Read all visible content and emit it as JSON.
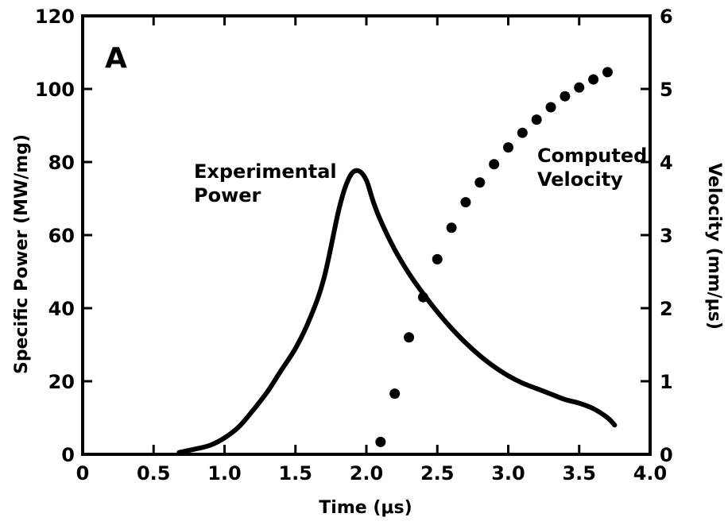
{
  "chart_data": {
    "type": "line",
    "panel_label": "A",
    "xlabel": "Time (μs)",
    "ylabel_left": "Specific Power (MW/mg)",
    "ylabel_right": "Velocity (mm/μs)",
    "xlim": [
      0,
      4.0
    ],
    "ylim_left": [
      0,
      120
    ],
    "ylim_right": [
      0,
      6
    ],
    "x_ticks": [
      0,
      0.5,
      1.0,
      1.5,
      2.0,
      2.5,
      3.0,
      3.5,
      4.0
    ],
    "x_tick_labels": [
      "0",
      "0.5",
      "1.0",
      "1.5",
      "2.0",
      "2.5",
      "3.0",
      "3.5",
      "4.0"
    ],
    "y_left_ticks": [
      0,
      20,
      40,
      60,
      80,
      100,
      120
    ],
    "y_left_tick_labels": [
      "0",
      "20",
      "40",
      "60",
      "80",
      "100",
      "120"
    ],
    "y_right_ticks": [
      0,
      1,
      2,
      3,
      4,
      5,
      6
    ],
    "y_right_tick_labels": [
      "0",
      "1",
      "2",
      "3",
      "4",
      "5",
      "6"
    ],
    "grid": false,
    "legend": "none",
    "series": [
      {
        "name": "Experimental Power",
        "axis": "left",
        "style": "line",
        "label_lines": [
          "Experimental",
          "Power"
        ],
        "x": [
          0.68,
          0.8,
          0.9,
          1.0,
          1.1,
          1.2,
          1.3,
          1.4,
          1.5,
          1.6,
          1.7,
          1.8,
          1.85,
          1.9,
          1.95,
          2.0,
          2.05,
          2.1,
          2.2,
          2.3,
          2.4,
          2.5,
          2.6,
          2.7,
          2.8,
          2.9,
          3.0,
          3.1,
          3.2,
          3.3,
          3.4,
          3.5,
          3.6,
          3.7,
          3.75
        ],
        "y": [
          0.5,
          1.5,
          2.5,
          4.5,
          7.5,
          12,
          17,
          23,
          29,
          37,
          48,
          66,
          73,
          77,
          77.5,
          75,
          69,
          64,
          56,
          49.5,
          44,
          39,
          34.5,
          30.5,
          27,
          24,
          21.5,
          19.5,
          18,
          16.5,
          15,
          14,
          12.5,
          10,
          8
        ]
      },
      {
        "name": "Computed Velocity",
        "axis": "right",
        "style": "scatter",
        "label_lines": [
          "Computed",
          "Velocity"
        ],
        "x": [
          2.1,
          2.2,
          2.3,
          2.4,
          2.5,
          2.6,
          2.7,
          2.8,
          2.9,
          3.0,
          3.1,
          3.2,
          3.3,
          3.4,
          3.5,
          3.6,
          3.7
        ],
        "y": [
          0.17,
          0.83,
          1.6,
          2.15,
          2.67,
          3.1,
          3.45,
          3.72,
          3.97,
          4.2,
          4.4,
          4.58,
          4.75,
          4.9,
          5.02,
          5.13,
          5.23
        ]
      }
    ]
  }
}
